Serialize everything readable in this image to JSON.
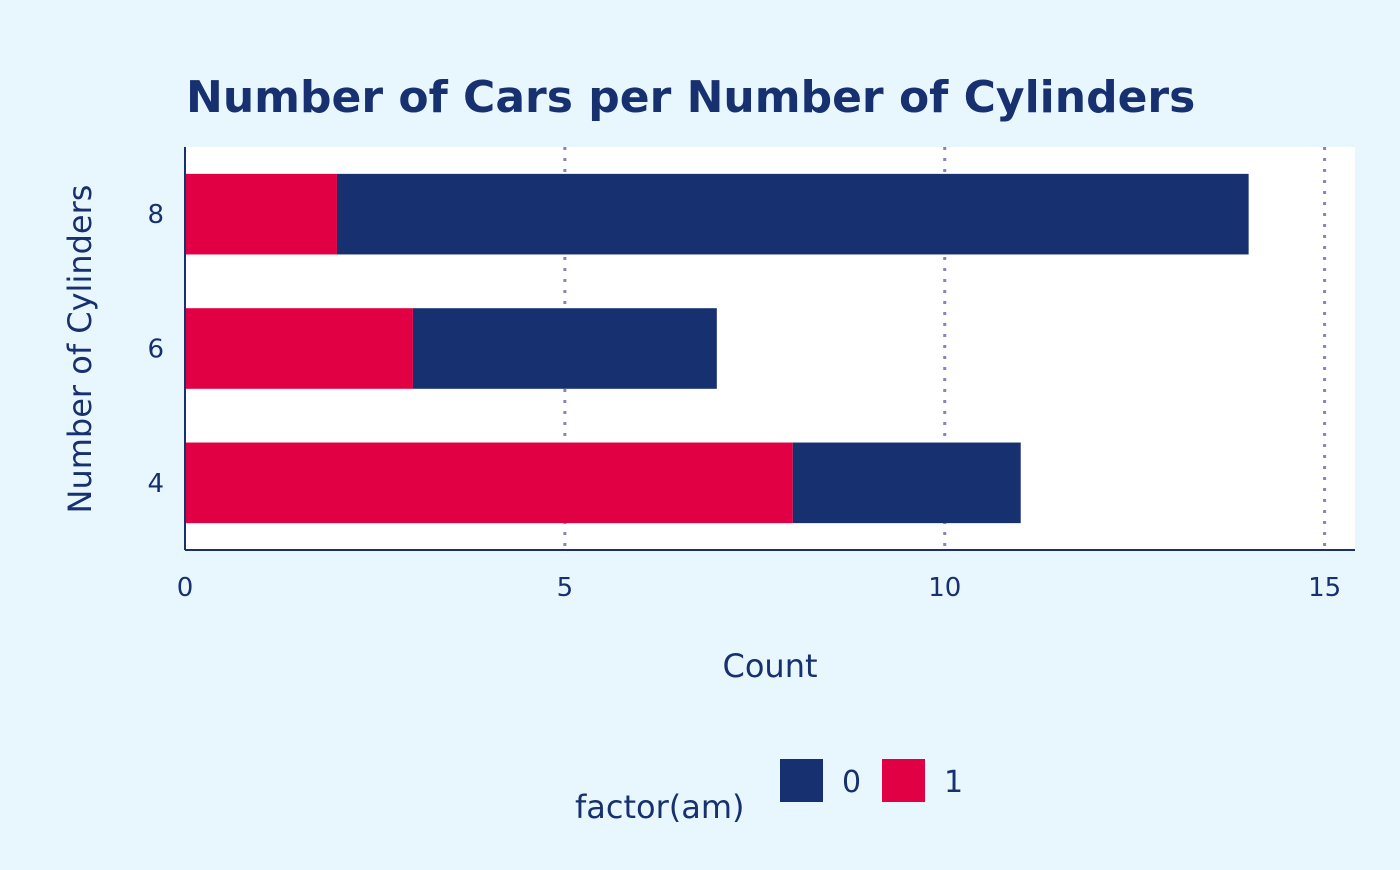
{
  "chart_data": {
    "type": "bar",
    "orientation": "horizontal",
    "stacked": true,
    "title": "Number of Cars per Number of Cylinders",
    "xlabel": "Count",
    "ylabel": "Number of Cylinders",
    "categories": [
      "4",
      "6",
      "8"
    ],
    "x_ticks": [
      0,
      5,
      10,
      15
    ],
    "x_tick_labels": [
      "0",
      "5",
      "10",
      "15"
    ],
    "xlim": [
      0,
      15.4
    ],
    "grid": "vertical dotted",
    "series": [
      {
        "name": "1",
        "color": "#e10044",
        "values": [
          8,
          3,
          2
        ]
      },
      {
        "name": "0",
        "color": "#17306f",
        "values": [
          3,
          4,
          12
        ]
      }
    ],
    "legend": {
      "title": "factor(am)",
      "placement": "bottom",
      "entries": [
        {
          "label": "0",
          "color": "#17306f"
        },
        {
          "label": "1",
          "color": "#e10044"
        }
      ]
    },
    "colors": {
      "background": "#e8f7fe",
      "panel": "#ffffff",
      "text": "#17306f",
      "grid": "#8a82b8"
    }
  }
}
